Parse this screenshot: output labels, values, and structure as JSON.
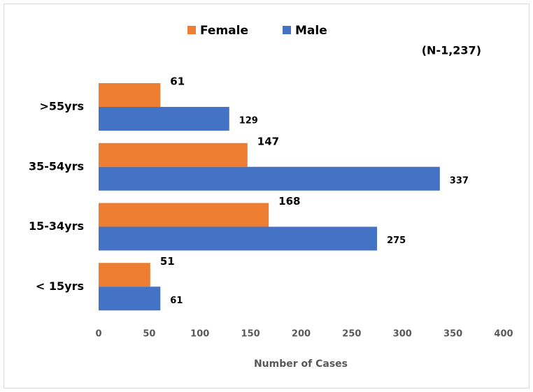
{
  "chart_data": {
    "type": "bar",
    "orientation": "horizontal",
    "annotation": "(N-1,237)",
    "xlabel": "Number of Cases",
    "categories": [
      ">55yrs",
      "35-54yrs",
      "15-34yrs",
      "< 15yrs"
    ],
    "series": [
      {
        "name": "Female",
        "color": "#ed7d31",
        "values": [
          61,
          147,
          168,
          51
        ]
      },
      {
        "name": "Male",
        "color": "#4472c4",
        "values": [
          129,
          337,
          275,
          61
        ]
      }
    ],
    "xlim": [
      0,
      400
    ],
    "xticks": [
      0,
      50,
      100,
      150,
      200,
      250,
      300,
      350,
      400
    ],
    "grid": false,
    "legend": "top"
  }
}
